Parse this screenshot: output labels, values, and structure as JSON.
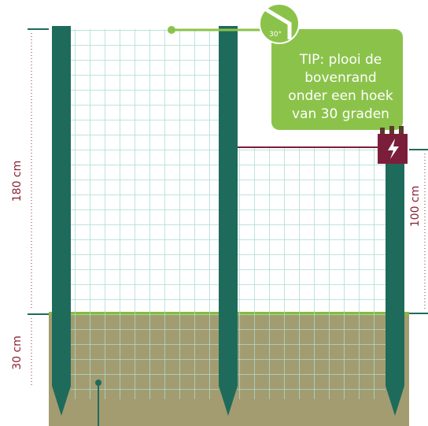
{
  "dimensions": {
    "above_ground": "180 cm",
    "below_ground": "30 cm",
    "wire_height": "100 cm"
  },
  "tip": {
    "angle": "30°",
    "lines": [
      "TIP: plooi de",
      "bovenrand",
      "onder een hoek",
      "van 30 graden"
    ]
  }
}
